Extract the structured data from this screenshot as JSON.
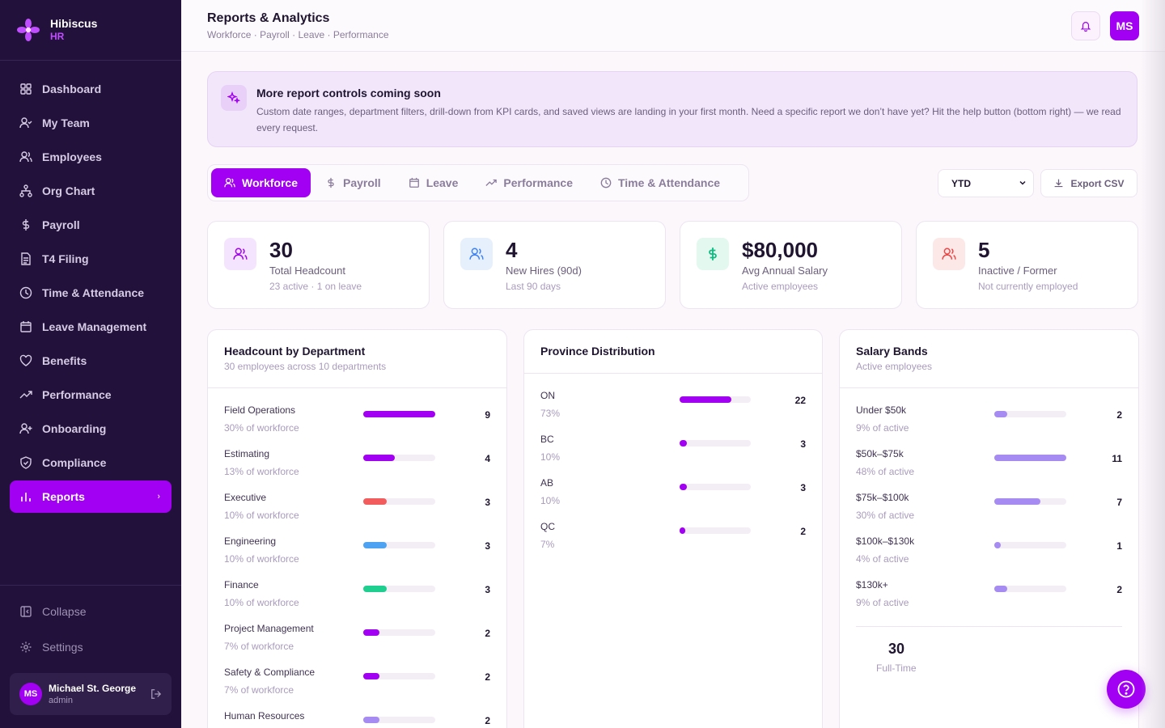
{
  "brand": {
    "name": "Hibiscus",
    "sub": "HR"
  },
  "nav": {
    "items": [
      {
        "label": "Dashboard"
      },
      {
        "label": "My Team"
      },
      {
        "label": "Employees"
      },
      {
        "label": "Org Chart"
      },
      {
        "label": "Payroll"
      },
      {
        "label": "T4 Filing"
      },
      {
        "label": "Time & Attendance"
      },
      {
        "label": "Leave Management"
      },
      {
        "label": "Benefits"
      },
      {
        "label": "Performance"
      },
      {
        "label": "Onboarding"
      },
      {
        "label": "Compliance"
      },
      {
        "label": "Reports"
      }
    ],
    "collapse": "Collapse",
    "settings": "Settings"
  },
  "user": {
    "initials": "MS",
    "name": "Michael St. George",
    "role": "admin"
  },
  "header": {
    "title": "Reports & Analytics",
    "breadcrumb": "Workforce · Payroll · Leave · Performance",
    "avatar": "MS"
  },
  "banner": {
    "title": "More report controls coming soon",
    "text": "Custom date ranges, department filters, drill-down from KPI cards, and saved views are landing in your first month. Need a specific report we don’t have yet? Hit the help button (bottom right) — we read every request."
  },
  "tabs": [
    {
      "label": "Workforce"
    },
    {
      "label": "Payroll"
    },
    {
      "label": "Leave"
    },
    {
      "label": "Performance"
    },
    {
      "label": "Time & Attendance"
    }
  ],
  "period": {
    "selected": "YTD"
  },
  "export_label": "Export CSV",
  "kpis": [
    {
      "value": "30",
      "label": "Total Headcount",
      "sub": "23 active · 1 on leave"
    },
    {
      "value": "4",
      "label": "New Hires (90d)",
      "sub": "Last 90 days"
    },
    {
      "value": "$80,000",
      "label": "Avg Annual Salary",
      "sub": "Active employees"
    },
    {
      "value": "5",
      "label": "Inactive / Former",
      "sub": "Not currently employed"
    }
  ],
  "headcount": {
    "title": "Headcount by Department",
    "sub": "30 employees across 10 departments",
    "rows": [
      {
        "label": "Field Operations",
        "sub": "30% of workforce",
        "count": "9",
        "pct": 100,
        "color": "#a100f2"
      },
      {
        "label": "Estimating",
        "sub": "13% of workforce",
        "count": "4",
        "pct": 44,
        "color": "#a100f2"
      },
      {
        "label": "Executive",
        "sub": "10% of workforce",
        "count": "3",
        "pct": 33,
        "color": "#f25c5c"
      },
      {
        "label": "Engineering",
        "sub": "10% of workforce",
        "count": "3",
        "pct": 33,
        "color": "#4da3f2"
      },
      {
        "label": "Finance",
        "sub": "10% of workforce",
        "count": "3",
        "pct": 33,
        "color": "#1fcf8f"
      },
      {
        "label": "Project Management",
        "sub": "7% of workforce",
        "count": "2",
        "pct": 22,
        "color": "#a100f2"
      },
      {
        "label": "Safety & Compliance",
        "sub": "7% of workforce",
        "count": "2",
        "pct": 22,
        "color": "#a100f2"
      },
      {
        "label": "Human Resources",
        "sub": "",
        "count": "2",
        "pct": 22,
        "color": "#a68bf2"
      }
    ]
  },
  "province": {
    "title": "Province Distribution",
    "rows": [
      {
        "label": "ON",
        "sub": "73%",
        "count": "22",
        "pct": 73,
        "color": "#a100f2"
      },
      {
        "label": "BC",
        "sub": "10%",
        "count": "3",
        "pct": 10,
        "color": "#a100f2"
      },
      {
        "label": "AB",
        "sub": "10%",
        "count": "3",
        "pct": 10,
        "color": "#a100f2"
      },
      {
        "label": "QC",
        "sub": "7%",
        "count": "2",
        "pct": 7,
        "color": "#a100f2"
      }
    ]
  },
  "salary": {
    "title": "Salary Bands",
    "sub": "Active employees",
    "rows": [
      {
        "label": "Under $50k",
        "sub": "9% of active",
        "count": "2",
        "pct": 18,
        "color": "#a68bf2"
      },
      {
        "label": "$50k–$75k",
        "sub": "48% of active",
        "count": "11",
        "pct": 100,
        "color": "#a68bf2"
      },
      {
        "label": "$75k–$100k",
        "sub": "30% of active",
        "count": "7",
        "pct": 64,
        "color": "#a68bf2"
      },
      {
        "label": "$100k–$130k",
        "sub": "4% of active",
        "count": "1",
        "pct": 9,
        "color": "#a68bf2"
      },
      {
        "label": "$130k+",
        "sub": "9% of active",
        "count": "2",
        "pct": 18,
        "color": "#a68bf2"
      }
    ],
    "fulltime_value": "30",
    "fulltime_label": "Full-Time"
  }
}
